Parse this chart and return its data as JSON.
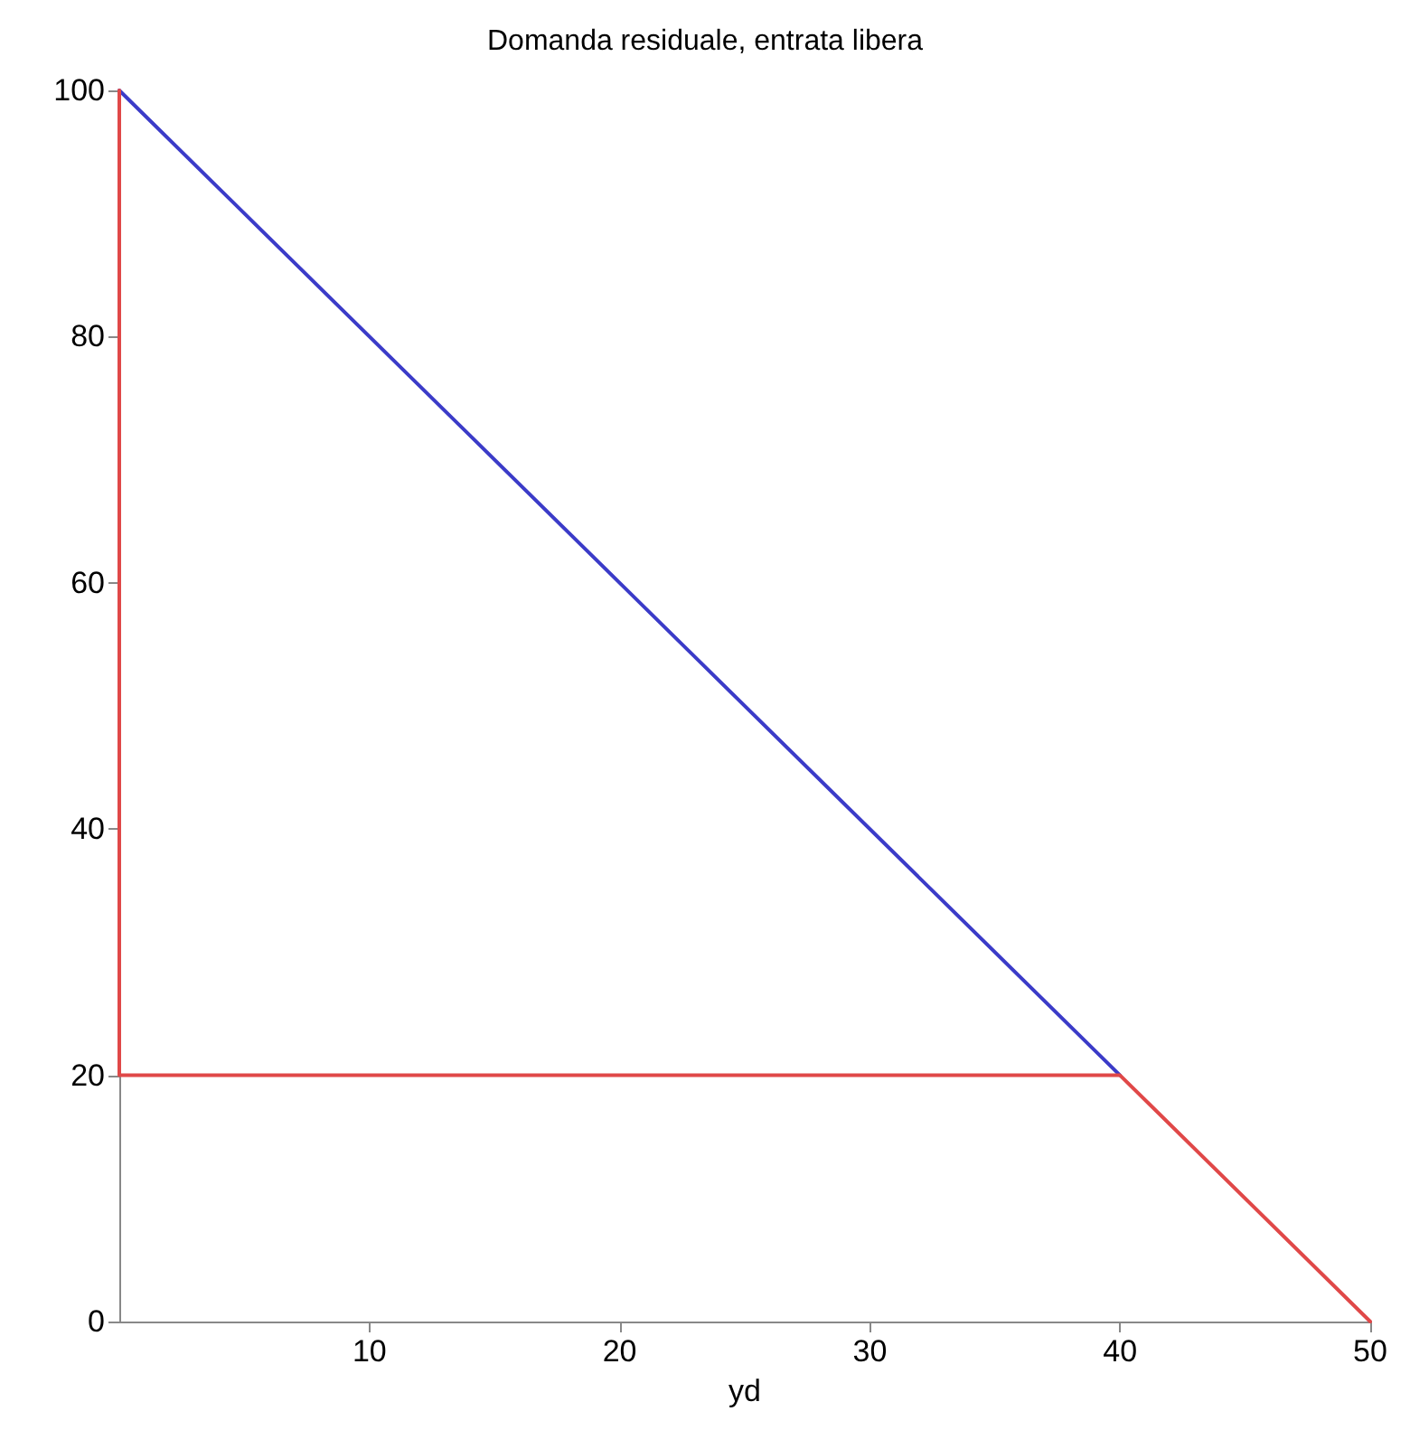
{
  "chart_data": {
    "type": "line",
    "title": "Domanda residuale, entrata libera",
    "xlabel": "yd",
    "xlim": [
      0,
      50
    ],
    "xticks": [
      10,
      20,
      30,
      40,
      50
    ],
    "ylim": [
      0,
      100
    ],
    "yticks": [
      0,
      20,
      40,
      60,
      80,
      100
    ],
    "grid": false,
    "marker": "none",
    "line_style": "solid",
    "series": [
      {
        "color": "#3b3bc8",
        "x": [
          0,
          40
        ],
        "values": [
          100,
          20
        ]
      },
      {
        "color": "#e04848",
        "x": [
          0,
          0,
          40,
          50
        ],
        "values": [
          100,
          20,
          20,
          0
        ]
      }
    ]
  }
}
